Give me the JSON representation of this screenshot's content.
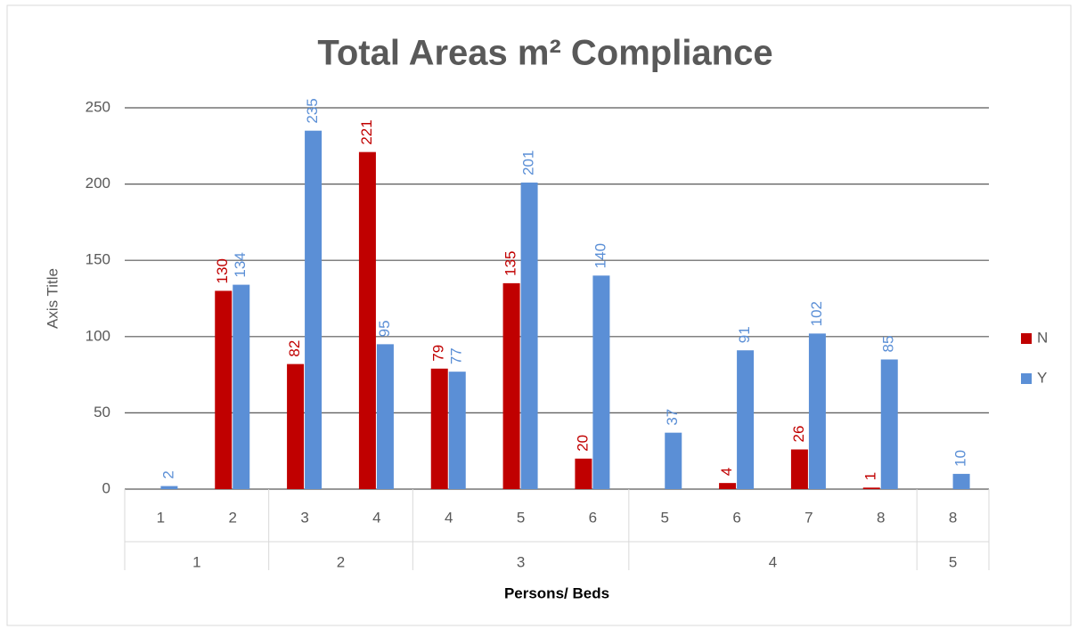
{
  "chart_data": {
    "type": "bar",
    "title": "Total Areas m² Compliance",
    "xlabel": "Persons/ Beds",
    "ylabel": "Axis Title",
    "groups": [
      {
        "label": "1",
        "categories": [
          "1",
          "2"
        ]
      },
      {
        "label": "2",
        "categories": [
          "3",
          "4"
        ]
      },
      {
        "label": "3",
        "categories": [
          "4",
          "5",
          "6"
        ]
      },
      {
        "label": "4",
        "categories": [
          "5",
          "6",
          "7",
          "8"
        ]
      },
      {
        "label": "5",
        "categories": [
          "8"
        ]
      }
    ],
    "series": [
      {
        "name": "N",
        "color": "#c00000",
        "values": [
          null,
          130,
          82,
          221,
          79,
          135,
          20,
          null,
          4,
          26,
          1,
          null
        ]
      },
      {
        "name": "Y",
        "color": "#5b8fd6",
        "values": [
          2,
          134,
          235,
          95,
          77,
          201,
          140,
          37,
          91,
          102,
          85,
          10
        ]
      }
    ],
    "ylim": [
      0,
      250
    ],
    "yticks": [
      0,
      50,
      100,
      150,
      200,
      250
    ],
    "grid": true,
    "legend": "right"
  }
}
